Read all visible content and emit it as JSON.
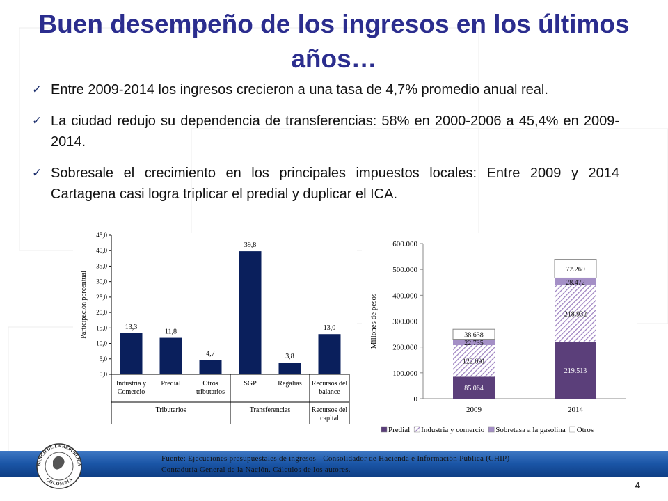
{
  "title": "Buen desempeño de los ingresos en los últimos años…",
  "bullets": [
    "Entre 2009-2014 los ingresos crecieron a una tasa de 4,7% promedio anual real.",
    "La ciudad redujo su dependencia de transferencias: 58% en 2000-2006 a 45,4% en 2009-2014.",
    "Sobresale el crecimiento  en los principales impuestos locales: Entre 2009 y 2014 Cartagena casi logra triplicar el predial y duplicar el ICA."
  ],
  "source": "Fuente: Ejecuciones presupuestales de ingresos - Consolidador de Hacienda e Información Pública (CHIP) Contaduría General de la Nación. Cálculos de los autores.",
  "logo": {
    "top": "BANCO DE LA REPÚBLICA",
    "bottom": "COLOMBIA"
  },
  "page_number": "4",
  "chart_data": [
    {
      "type": "bar",
      "ylabel": "Participación porcentual",
      "categories": [
        "Industria y Comercio",
        "Predial",
        "Otros tributarios",
        "SGP",
        "Regalías",
        "Recursos del balance"
      ],
      "groups": [
        "Tributarios",
        "Tributarios",
        "Tributarios",
        "Transferencias",
        "Transferencias",
        "Recursos del capital"
      ],
      "values": [
        13.3,
        11.8,
        4.7,
        39.8,
        3.8,
        13.0
      ],
      "value_labels": [
        "13,3",
        "11,8",
        "4,7",
        "39,8",
        "3,8",
        "13,0"
      ],
      "color": "#0a1f5c",
      "ylim": [
        0,
        45
      ],
      "yticks": [
        {
          "value": 0,
          "label": "0,0"
        },
        {
          "value": 5,
          "label": "5,0"
        },
        {
          "value": 10,
          "label": "10,0"
        },
        {
          "value": 15,
          "label": "15,0"
        },
        {
          "value": 20,
          "label": "20,0"
        },
        {
          "value": 25,
          "label": "25,0"
        },
        {
          "value": 30,
          "label": "30,0"
        },
        {
          "value": 35,
          "label": "35,0"
        },
        {
          "value": 40,
          "label": "40,0"
        },
        {
          "value": 45,
          "label": "45,0"
        }
      ]
    },
    {
      "type": "stacked_bar",
      "ylabel": "Millones de pesos",
      "categories": [
        "2009",
        "2014"
      ],
      "series": [
        {
          "name": "Predial",
          "color": "#5b3f7a",
          "values": [
            85064,
            219513
          ],
          "value_labels": [
            "85.064",
            "219.513"
          ]
        },
        {
          "name": "Industria y comercio",
          "color": "#9b7fbf",
          "hatch": true,
          "values": [
            122091,
            218932
          ],
          "value_labels": [
            "122.091",
            "218.932"
          ]
        },
        {
          "name": "Sobretasa a la gasolina",
          "color": "#a48fc6",
          "values": [
            22735,
            28472
          ],
          "value_labels": [
            "22.735",
            "28.472"
          ]
        },
        {
          "name": "Otros",
          "color": "#ffffff",
          "values": [
            38638,
            72269
          ],
          "value_labels": [
            "38.638",
            "72.269"
          ]
        }
      ],
      "ylim": [
        0,
        600000
      ],
      "yticks": [
        0,
        {
          "value": 100000,
          "label": "100.000"
        },
        {
          "value": 200000,
          "label": "200.000"
        },
        {
          "value": 300000,
          "label": "300.000"
        },
        {
          "value": 400000,
          "label": "400.000"
        },
        {
          "value": 500000,
          "label": "500.000"
        },
        {
          "value": 600000,
          "label": "600.000"
        }
      ],
      "legend": "bottom"
    }
  ]
}
